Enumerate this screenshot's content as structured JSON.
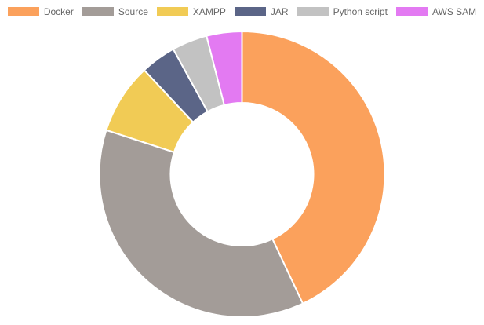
{
  "chart_data": {
    "type": "pie",
    "variant": "doughnut",
    "legend_position": "top",
    "categories": [
      "Docker",
      "Source",
      "XAMPP",
      "JAR",
      "Python script",
      "AWS SAM"
    ],
    "values": [
      43,
      37,
      8,
      4,
      4,
      4
    ],
    "colors": [
      "#FBA15C",
      "#A39C98",
      "#F1CB55",
      "#5B6587",
      "#C2C2C2",
      "#E37AF2"
    ]
  }
}
